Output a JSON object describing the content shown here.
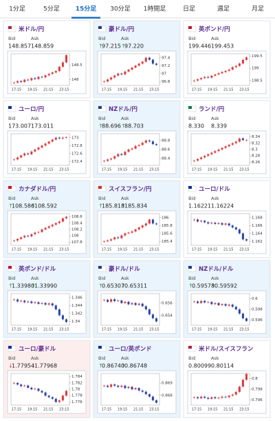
{
  "tabs": [
    "1分足",
    "5分足",
    "15分足",
    "30分足",
    "1時間足",
    "日足",
    "週足",
    "月足"
  ],
  "active_tab": 2,
  "bid_label": "Bid",
  "ask_label": "Ask",
  "time_labels": [
    "17:15",
    "19:15",
    "21:15",
    "23:15"
  ],
  "up_color": "#e03a3a",
  "down_color": "#2a45a8",
  "cards": [
    {
      "pair": "米ドル/円",
      "flag": "#b22234",
      "background": "#ffffff",
      "bid": "148.857",
      "ask": "148.859",
      "ylim": [
        147.8,
        148.9
      ],
      "yticks": [
        148.5,
        148
      ],
      "closes": [
        147.9,
        147.95,
        147.92,
        148.0,
        147.98,
        148.05,
        148.02,
        148.1,
        148.08,
        148.15,
        148.2,
        148.25,
        148.3,
        148.45,
        148.6,
        148.85
      ]
    },
    {
      "pair": "豪ドル/円",
      "flag": "#1f3c88",
      "background": "#eaf4fc",
      "arrow": "↑",
      "arrow_color": "#2e9a4a",
      "bid": "97.215",
      "ask": "97.220",
      "ylim": [
        96.7,
        97.5
      ],
      "yticks": [
        97.4,
        97.2,
        97,
        96.8
      ],
      "closes": [
        96.8,
        96.85,
        96.9,
        96.95,
        97.0,
        96.98,
        97.05,
        97.1,
        97.15,
        97.2,
        97.25,
        97.3,
        97.4,
        97.35,
        97.25,
        97.22
      ]
    },
    {
      "pair": "英ポンド/円",
      "flag": "#c8102e",
      "background": "#ffffff",
      "bid": "199.446",
      "ask": "199.453",
      "ylim": [
        198.3,
        199.6
      ],
      "yticks": [
        199.5,
        199,
        198.5
      ],
      "closes": [
        198.5,
        198.55,
        198.6,
        198.65,
        198.62,
        198.7,
        198.75,
        198.8,
        198.85,
        198.9,
        198.95,
        199.05,
        199.1,
        199.2,
        199.35,
        199.45
      ]
    },
    {
      "pair": "ユーロ/円",
      "flag": "#003399",
      "background": "#ffffff",
      "bid": "173.007",
      "ask": "173.011",
      "ylim": [
        172.3,
        173.1
      ],
      "yticks": [
        173,
        172.8,
        172.6,
        172.4
      ],
      "closes": [
        172.45,
        172.5,
        172.55,
        172.6,
        172.58,
        172.65,
        172.7,
        172.75,
        172.8,
        172.85,
        172.9,
        172.95,
        173.0,
        172.98,
        173.0,
        173.01
      ]
    },
    {
      "pair": "NZドル/円",
      "flag": "#1f3c88",
      "background": "#eaf4fc",
      "arrow": "↑",
      "arrow_color": "#2e9a4a",
      "bid": "88.696",
      "ask": "88.703",
      "ylim": [
        88.25,
        88.95
      ],
      "yticks": [
        88.8,
        88.6,
        88.4
      ],
      "closes": [
        88.35,
        88.38,
        88.4,
        88.45,
        88.5,
        88.48,
        88.55,
        88.6,
        88.62,
        88.68,
        88.7,
        88.75,
        88.8,
        88.78,
        88.72,
        88.7
      ]
    },
    {
      "pair": "ランド/円",
      "flag": "#007a4d",
      "background": "#ffffff",
      "bid": "8.330",
      "ask": "8.339",
      "ylim": [
        8.25,
        8.35
      ],
      "yticks": [
        8.34,
        8.32,
        8.3,
        8.28,
        8.26
      ],
      "closes": [
        8.265,
        8.27,
        8.275,
        8.28,
        8.285,
        8.29,
        8.295,
        8.3,
        8.305,
        8.31,
        8.315,
        8.32,
        8.325,
        8.335,
        8.33,
        8.33
      ]
    },
    {
      "pair": "カナダドル/円",
      "flag": "#d80621",
      "background": "#eaf4fc",
      "arrow": "↑",
      "arrow_color": "#2e9a4a",
      "bid": "108.586",
      "ask": "108.592",
      "ylim": [
        107.7,
        108.7
      ],
      "yticks": [
        108.6,
        108.4,
        108.2,
        108,
        107.8
      ],
      "closes": [
        107.85,
        107.9,
        107.95,
        108.0,
        107.98,
        108.05,
        108.1,
        108.12,
        108.2,
        108.25,
        108.3,
        108.35,
        108.4,
        108.45,
        108.55,
        108.6
      ]
    },
    {
      "pair": "スイスフラン/円",
      "flag": "#d52b1e",
      "background": "#eaf4fc",
      "arrow": "↑",
      "arrow_color": "#2e9a4a",
      "bid": "185.818",
      "ask": "185.834",
      "ylim": [
        185.3,
        186.1
      ],
      "yticks": [
        186,
        185.8,
        185.6,
        185.4
      ],
      "closes": [
        185.4,
        185.42,
        185.45,
        185.5,
        185.48,
        185.55,
        185.6,
        185.62,
        185.65,
        185.7,
        185.75,
        185.8,
        185.85,
        185.95,
        185.85,
        185.83
      ]
    },
    {
      "pair": "ユーロ/ドル",
      "flag": "#003399",
      "background": "#ffffff",
      "bid": "1.16221",
      "ask": "1.16224",
      "ylim": [
        1.161,
        1.169
      ],
      "yticks": [
        1.168,
        1.166,
        1.164,
        1.162
      ],
      "closes": [
        1.1675,
        1.167,
        1.1672,
        1.1668,
        1.1665,
        1.1667,
        1.1664,
        1.1666,
        1.1662,
        1.1665,
        1.166,
        1.1655,
        1.165,
        1.164,
        1.1625,
        1.1622
      ]
    },
    {
      "pair": "英ポンド/ドル",
      "flag": "#c8102e",
      "background": "#eaf4fc",
      "arrow": "↑",
      "arrow_color": "#2e9a4a",
      "bid": "1.33980",
      "ask": "1.33990",
      "ylim": [
        1.339,
        1.347
      ],
      "yticks": [
        1.346,
        1.344,
        1.342,
        1.34
      ],
      "closes": [
        1.3455,
        1.345,
        1.3452,
        1.3448,
        1.345,
        1.3446,
        1.3448,
        1.3444,
        1.3446,
        1.3442,
        1.3445,
        1.344,
        1.343,
        1.3415,
        1.3405,
        1.3398
      ]
    },
    {
      "pair": "豪ドル/ドル",
      "flag": "#1f3c88",
      "background": "#eaf4fc",
      "arrow": "↑",
      "arrow_color": "#2e9a4a",
      "bid": "0.65307",
      "ask": "0.65311",
      "ylim": [
        0.6525,
        0.6575
      ],
      "yticks": [
        0.656,
        0.654
      ],
      "closes": [
        0.6565,
        0.6562,
        0.6566,
        0.6563,
        0.6564,
        0.656,
        0.6562,
        0.6558,
        0.656,
        0.6557,
        0.6559,
        0.6555,
        0.655,
        0.6542,
        0.6536,
        0.6531
      ]
    },
    {
      "pair": "NZドル/ドル",
      "flag": "#1f3c88",
      "background": "#eaf4fc",
      "arrow": "↑",
      "arrow_color": "#2e9a4a",
      "bid": "0.59578",
      "ask": "0.59592",
      "ylim": [
        0.595,
        0.601
      ],
      "yticks": [
        0.6,
        0.598,
        0.596
      ],
      "closes": [
        0.5995,
        0.5992,
        0.5996,
        0.5993,
        0.5994,
        0.599,
        0.5992,
        0.5988,
        0.599,
        0.5987,
        0.5989,
        0.5985,
        0.598,
        0.5972,
        0.5963,
        0.5958
      ]
    },
    {
      "pair": "ユーロ/豪ドル",
      "flag": "#003399",
      "background": "#fdeeee",
      "arrow": "↓",
      "arrow_color": "#d83a3a",
      "bid": "1.77954",
      "ask": "1.77968",
      "ylim": [
        1.775,
        1.785
      ],
      "yticks": [
        1.784,
        1.782,
        1.78,
        1.778,
        1.776
      ],
      "closes": [
        1.782,
        1.7815,
        1.781,
        1.7812,
        1.7805,
        1.78,
        1.7802,
        1.7795,
        1.779,
        1.778,
        1.7775,
        1.777,
        1.776,
        1.7765,
        1.778,
        1.7795
      ]
    },
    {
      "pair": "ユーロ/英ポンド",
      "flag": "#003399",
      "background": "#eaf4fc",
      "arrow": "↑",
      "arrow_color": "#2e9a4a",
      "bid": "0.86740",
      "ask": "0.86748",
      "ylim": [
        0.8672,
        0.8698
      ],
      "yticks": [
        0.869,
        0.868
      ],
      "closes": [
        0.8688,
        0.8687,
        0.8689,
        0.8688,
        0.8687,
        0.8688,
        0.8686,
        0.8687,
        0.8685,
        0.8686,
        0.8684,
        0.8683,
        0.8681,
        0.8679,
        0.8676,
        0.8674
      ]
    },
    {
      "pair": "米ドル/スイスフラン",
      "flag": "#b22234",
      "background": "#ffffff",
      "bid": "0.80099",
      "ask": "0.80114",
      "ylim": [
        0.795,
        0.801
      ],
      "yticks": [
        0.8,
        0.798,
        0.796
      ],
      "closes": [
        0.7965,
        0.7963,
        0.7966,
        0.7964,
        0.7962,
        0.7965,
        0.7963,
        0.7964,
        0.7966,
        0.7965,
        0.7968,
        0.797,
        0.7975,
        0.7985,
        0.7998,
        0.8009
      ]
    }
  ]
}
